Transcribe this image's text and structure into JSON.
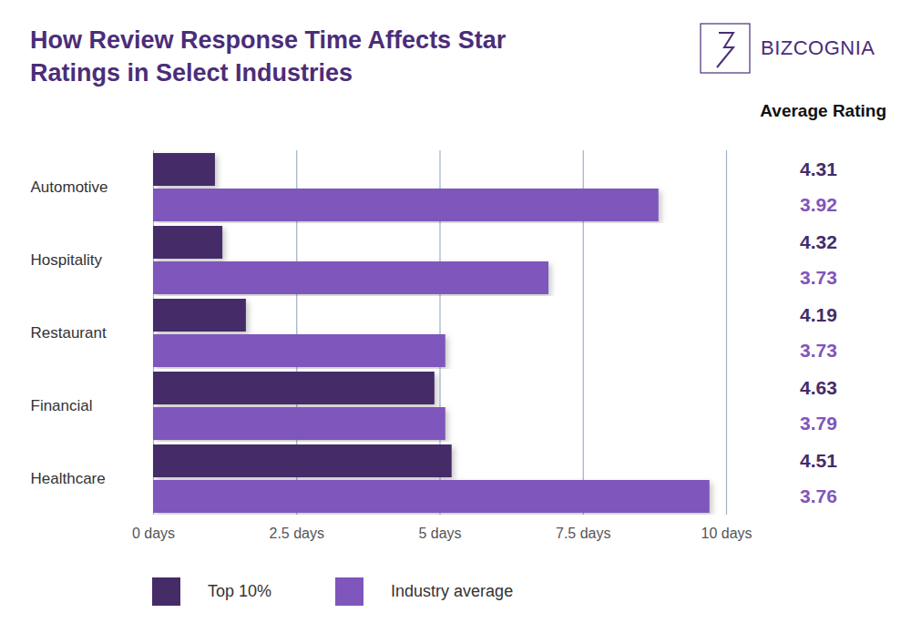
{
  "chart_data": {
    "type": "bar",
    "orientation": "horizontal",
    "title": "How Review Response Time Affects Star Ratings in Select Industries",
    "logo": "BIZCOGNIA",
    "ratings_title": "Average Rating",
    "categories": [
      "Automotive",
      "Hospitality",
      "Restaurant",
      "Financial",
      "Healthcare"
    ],
    "series": [
      {
        "name": "Top 10%",
        "color": "#452c68",
        "values": [
          1.08,
          1.21,
          1.62,
          4.91,
          5.21
        ],
        "ratings": [
          4.31,
          4.32,
          4.19,
          4.63,
          4.51
        ]
      },
      {
        "name": "Industry average",
        "color": "#7f56bb",
        "values": [
          8.82,
          6.9,
          5.1,
          5.1,
          9.71
        ],
        "ratings": [
          3.92,
          3.73,
          3.73,
          3.79,
          3.76
        ]
      }
    ],
    "xlim": [
      0,
      10
    ],
    "xticks": [
      {
        "value": 0,
        "label": "0 days"
      },
      {
        "value": 2.5,
        "label": "2.5 days"
      },
      {
        "value": 5,
        "label": "5 days"
      },
      {
        "value": 7.5,
        "label": "7.5 days"
      },
      {
        "value": 10,
        "label": "10 days"
      }
    ],
    "grid": true,
    "legend": "bottom"
  }
}
